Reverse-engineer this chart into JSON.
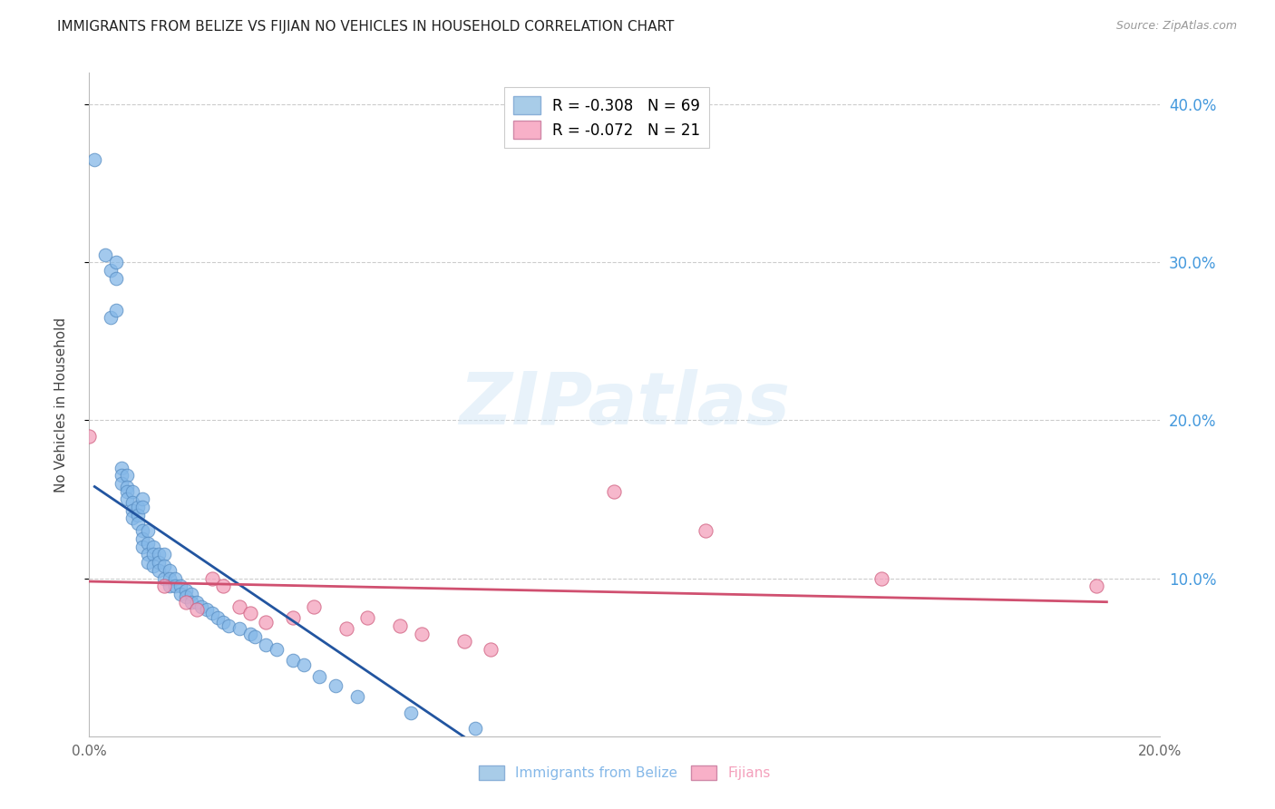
{
  "title": "IMMIGRANTS FROM BELIZE VS FIJIAN NO VEHICLES IN HOUSEHOLD CORRELATION CHART",
  "source": "Source: ZipAtlas.com",
  "ylabel": "No Vehicles in Household",
  "xlim": [
    0.0,
    0.2
  ],
  "ylim": [
    0.0,
    0.42
  ],
  "xticks": [
    0.0,
    0.05,
    0.1,
    0.15,
    0.2
  ],
  "xtick_labels": [
    "0.0%",
    "",
    "",
    "",
    "20.0%"
  ],
  "yticks": [
    0.1,
    0.2,
    0.3,
    0.4
  ],
  "ytick_right_labels": [
    "10.0%",
    "20.0%",
    "30.0%",
    "40.0%"
  ],
  "watermark": "ZIPatlas",
  "belize_color": "#85b8e8",
  "belize_edge": "#5a8fc4",
  "fijian_color": "#f4a0bc",
  "fijian_edge": "#d06080",
  "belize_line_color": "#2255a0",
  "fijian_line_color": "#d05070",
  "legend_belize_label": "R = -0.308   N = 69",
  "legend_fijian_label": "R = -0.072   N = 21",
  "legend_belize_color": "#a8cce8",
  "legend_fijian_color": "#f8b0c8",
  "bottom_label_belize": "Immigrants from Belize",
  "bottom_label_fijian": "Fijians",
  "series_belize_x": [
    0.001,
    0.003,
    0.004,
    0.004,
    0.005,
    0.005,
    0.005,
    0.006,
    0.006,
    0.006,
    0.007,
    0.007,
    0.007,
    0.007,
    0.008,
    0.008,
    0.008,
    0.008,
    0.009,
    0.009,
    0.009,
    0.01,
    0.01,
    0.01,
    0.01,
    0.01,
    0.011,
    0.011,
    0.011,
    0.011,
    0.012,
    0.012,
    0.012,
    0.013,
    0.013,
    0.013,
    0.014,
    0.014,
    0.014,
    0.015,
    0.015,
    0.015,
    0.016,
    0.016,
    0.017,
    0.017,
    0.018,
    0.018,
    0.019,
    0.019,
    0.02,
    0.021,
    0.022,
    0.023,
    0.024,
    0.025,
    0.026,
    0.028,
    0.03,
    0.031,
    0.033,
    0.035,
    0.038,
    0.04,
    0.043,
    0.046,
    0.05,
    0.06,
    0.072
  ],
  "series_belize_y": [
    0.365,
    0.305,
    0.295,
    0.265,
    0.3,
    0.29,
    0.27,
    0.17,
    0.165,
    0.16,
    0.165,
    0.158,
    0.155,
    0.15,
    0.155,
    0.148,
    0.143,
    0.138,
    0.145,
    0.14,
    0.135,
    0.15,
    0.145,
    0.13,
    0.125,
    0.12,
    0.13,
    0.122,
    0.115,
    0.11,
    0.12,
    0.115,
    0.108,
    0.115,
    0.11,
    0.105,
    0.115,
    0.108,
    0.1,
    0.105,
    0.1,
    0.095,
    0.1,
    0.095,
    0.095,
    0.09,
    0.092,
    0.088,
    0.09,
    0.085,
    0.085,
    0.082,
    0.08,
    0.078,
    0.075,
    0.072,
    0.07,
    0.068,
    0.065,
    0.063,
    0.058,
    0.055,
    0.048,
    0.045,
    0.038,
    0.032,
    0.025,
    0.015,
    0.005
  ],
  "series_fijian_x": [
    0.0,
    0.014,
    0.018,
    0.02,
    0.023,
    0.025,
    0.028,
    0.03,
    0.033,
    0.038,
    0.042,
    0.048,
    0.052,
    0.058,
    0.062,
    0.07,
    0.075,
    0.098,
    0.115,
    0.148,
    0.188
  ],
  "series_fijian_y": [
    0.19,
    0.095,
    0.085,
    0.08,
    0.1,
    0.095,
    0.082,
    0.078,
    0.072,
    0.075,
    0.082,
    0.068,
    0.075,
    0.07,
    0.065,
    0.06,
    0.055,
    0.155,
    0.13,
    0.1,
    0.095
  ],
  "belize_line_x": [
    0.001,
    0.072
  ],
  "belize_line_y": [
    0.158,
    -0.005
  ],
  "fijian_line_x": [
    0.0,
    0.19
  ],
  "fijian_line_y": [
    0.098,
    0.085
  ]
}
